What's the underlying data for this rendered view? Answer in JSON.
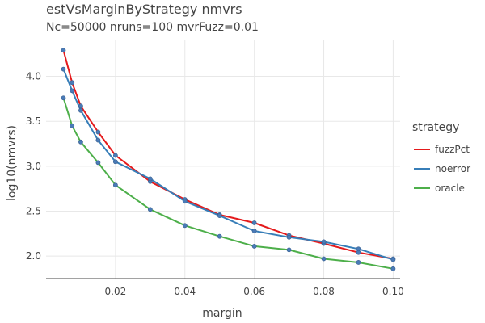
{
  "chart_data": {
    "type": "line",
    "title": "estVsMarginByStrategy nmvrs",
    "subtitle": "Nc=50000 nruns=100 mvrFuzz=0.01",
    "xlabel": "margin",
    "ylabel": "log10(nmvrs)",
    "xlim": [
      0,
      0.102
    ],
    "ylim": [
      1.75,
      4.4
    ],
    "x_ticks": [
      0.02,
      0.04,
      0.06,
      0.08,
      0.1
    ],
    "x_tick_labels": [
      "0.02",
      "0.04",
      "0.06",
      "0.08",
      "0.10"
    ],
    "y_ticks": [
      2.0,
      2.5,
      3.0,
      3.5,
      4.0
    ],
    "y_tick_labels": [
      "2.0",
      "2.5",
      "3.0",
      "3.5",
      "4.0"
    ],
    "grid": true,
    "legend_title": "strategy",
    "legend_position": "right",
    "marker_color": "#4a7bb7",
    "series": [
      {
        "name": "fuzzPct",
        "color": "#e41a1c",
        "x": [
          0.005,
          0.0075,
          0.01,
          0.015,
          0.02,
          0.03,
          0.04,
          0.05,
          0.06,
          0.07,
          0.08,
          0.09,
          0.1
        ],
        "y": [
          4.29,
          3.93,
          3.67,
          3.38,
          3.12,
          2.83,
          2.63,
          2.46,
          2.37,
          2.23,
          2.14,
          2.04,
          1.97
        ]
      },
      {
        "name": "noerror",
        "color": "#377eb8",
        "x": [
          0.005,
          0.0075,
          0.01,
          0.015,
          0.02,
          0.03,
          0.04,
          0.05,
          0.06,
          0.07,
          0.08,
          0.09,
          0.1
        ],
        "y": [
          4.08,
          3.84,
          3.62,
          3.29,
          3.05,
          2.86,
          2.61,
          2.45,
          2.28,
          2.21,
          2.16,
          2.08,
          1.96
        ]
      },
      {
        "name": "oracle",
        "color": "#4daf4a",
        "x": [
          0.005,
          0.0075,
          0.01,
          0.015,
          0.02,
          0.03,
          0.04,
          0.05,
          0.06,
          0.07,
          0.08,
          0.09,
          0.1
        ],
        "y": [
          3.76,
          3.45,
          3.27,
          3.04,
          2.79,
          2.52,
          2.34,
          2.22,
          2.11,
          2.07,
          1.97,
          1.93,
          1.86
        ]
      }
    ]
  }
}
